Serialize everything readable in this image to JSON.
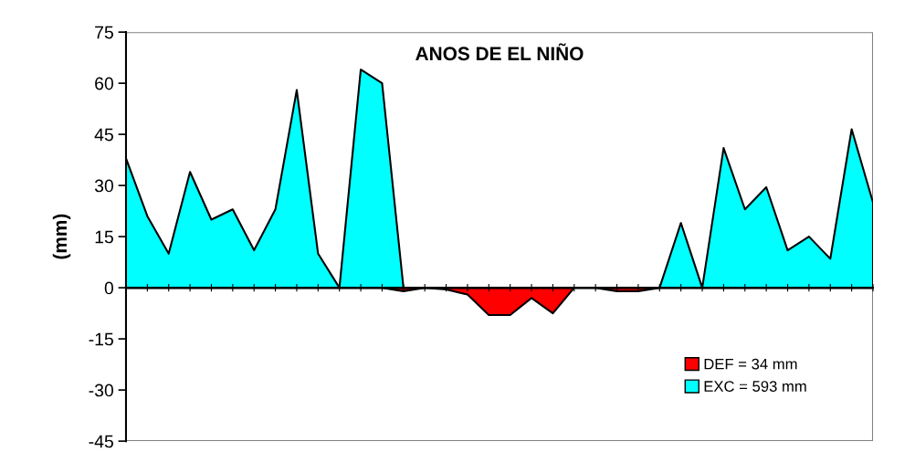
{
  "chart_data": {
    "type": "area",
    "title": "ANOS DE EL NIÑO",
    "ylabel": "(mm)",
    "categories": [
      null,
      null,
      null,
      null,
      null,
      null,
      null,
      null,
      null,
      null,
      null,
      null,
      null,
      null,
      null,
      null,
      null,
      null,
      null,
      null,
      null,
      null,
      null,
      null,
      null,
      null,
      null,
      null,
      null,
      null,
      null,
      null,
      null,
      null,
      null,
      null
    ],
    "series": [
      {
        "name": "DEF = 34 mm",
        "color": "#ff0000",
        "values": [
          0,
          0,
          0,
          0,
          0,
          0,
          0,
          0,
          0,
          0,
          0,
          0,
          0,
          -1,
          0,
          -0.5,
          -2,
          -8,
          -8,
          -3,
          -7.5,
          0,
          0,
          -1,
          -1,
          0,
          0,
          0,
          0,
          0,
          0,
          0,
          0,
          0,
          0,
          0
        ]
      },
      {
        "name": "EXC = 593 mm",
        "color": "#00ffff",
        "values": [
          38,
          21,
          10,
          34,
          20,
          23,
          11,
          23,
          58,
          10,
          0,
          64,
          60,
          0,
          0,
          0,
          0,
          0,
          0,
          0,
          0,
          0,
          0,
          0,
          0,
          0,
          19,
          0,
          41,
          23,
          29.5,
          11,
          15,
          8.5,
          46.5,
          25
        ]
      }
    ],
    "ylim": [
      -45,
      75
    ],
    "yticks": [
      -45,
      -30,
      -15,
      0,
      15,
      30,
      45,
      60,
      75
    ],
    "legend": "bottom right"
  }
}
